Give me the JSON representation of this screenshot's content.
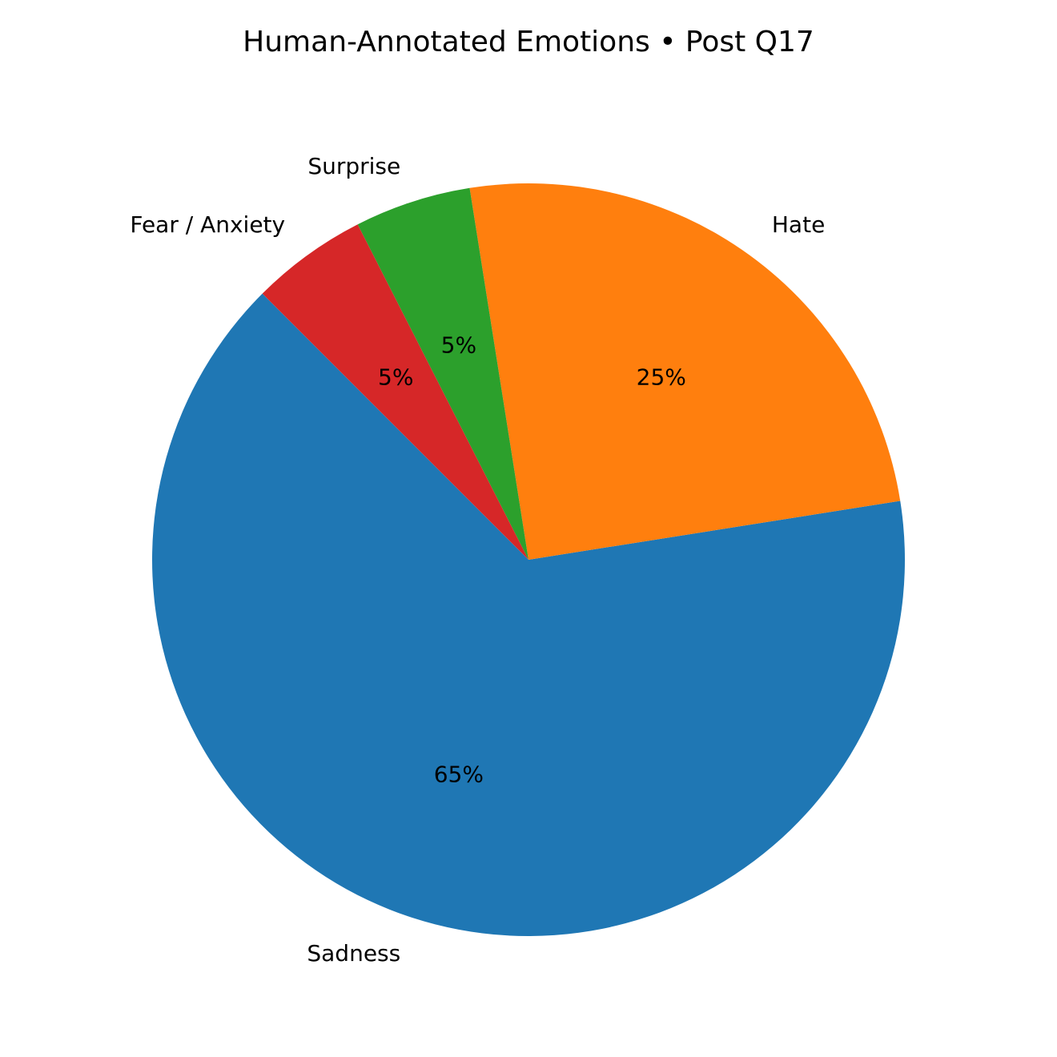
{
  "chart_data": {
    "type": "pie",
    "title": "Human-Annotated Emotions • Post Q17",
    "slices": [
      {
        "label": "Sadness",
        "value": 65,
        "pct_label": "65%",
        "color": "#1f77b4"
      },
      {
        "label": "Hate",
        "value": 25,
        "pct_label": "25%",
        "color": "#ff7f0e"
      },
      {
        "label": "Surprise",
        "value": 5,
        "pct_label": "5%",
        "color": "#2ca02c"
      },
      {
        "label": "Fear / Anxiety",
        "value": 5,
        "pct_label": "5%",
        "color": "#d62728"
      }
    ],
    "start_angle_deg": 135,
    "direction": "counterclockwise"
  }
}
